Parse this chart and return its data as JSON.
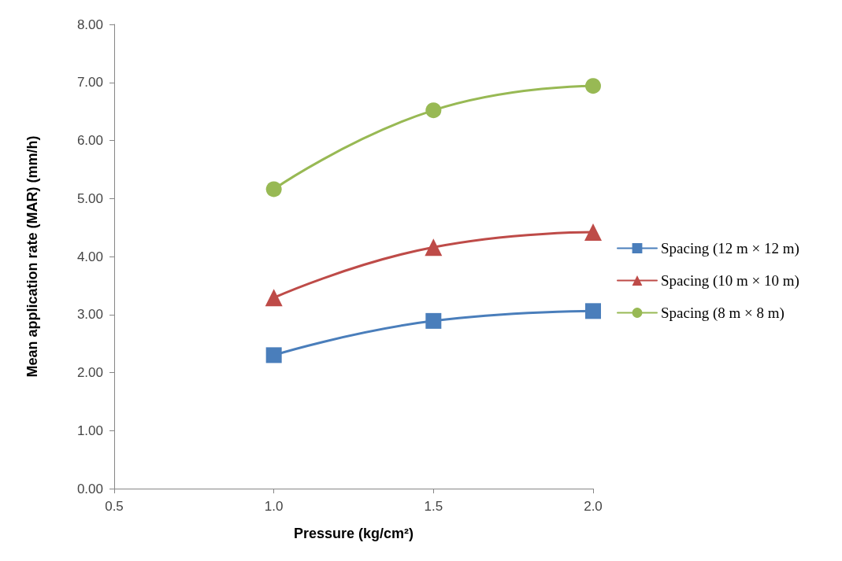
{
  "chart_data": {
    "type": "line",
    "xlabel": "Pressure (kg/cm²)",
    "ylabel": "Mean application rate (MAR) (mm/h)",
    "xlim": [
      0.5,
      2.0
    ],
    "xticks": [
      {
        "value": 0.5,
        "label": "0.5"
      },
      {
        "value": 1,
        "label": "1.0"
      },
      {
        "value": 1.5,
        "label": "1.5"
      },
      {
        "value": 2,
        "label": "2.0"
      }
    ],
    "ylim": [
      0,
      8
    ],
    "yticks": [
      {
        "value": 0,
        "label": "0.00"
      },
      {
        "value": 1,
        "label": "1.00"
      },
      {
        "value": 2,
        "label": "2.00"
      },
      {
        "value": 3,
        "label": "3.00"
      },
      {
        "value": 4,
        "label": "4.00"
      },
      {
        "value": 5,
        "label": "5.00"
      },
      {
        "value": 6,
        "label": "6.00"
      },
      {
        "value": 7,
        "label": "7.00"
      },
      {
        "value": 8,
        "label": "8.00"
      }
    ],
    "x": [
      1.0,
      1.5,
      2.0
    ],
    "grid": false,
    "legend": "right",
    "line_style": "solid",
    "series": [
      {
        "name": "Spacing (12 m × 12 m)",
        "color": "#4a7ebb",
        "marker": "square",
        "values": [
          2.3,
          2.89,
          3.06
        ]
      },
      {
        "name": "Spacing (10 m × 10 m)",
        "color": "#be4b48",
        "marker": "triangle",
        "values": [
          3.29,
          4.16,
          4.42
        ]
      },
      {
        "name": "Spacing (8 m × 8 m)",
        "color": "#98b954",
        "marker": "circle",
        "values": [
          5.16,
          6.52,
          6.94
        ]
      }
    ]
  }
}
